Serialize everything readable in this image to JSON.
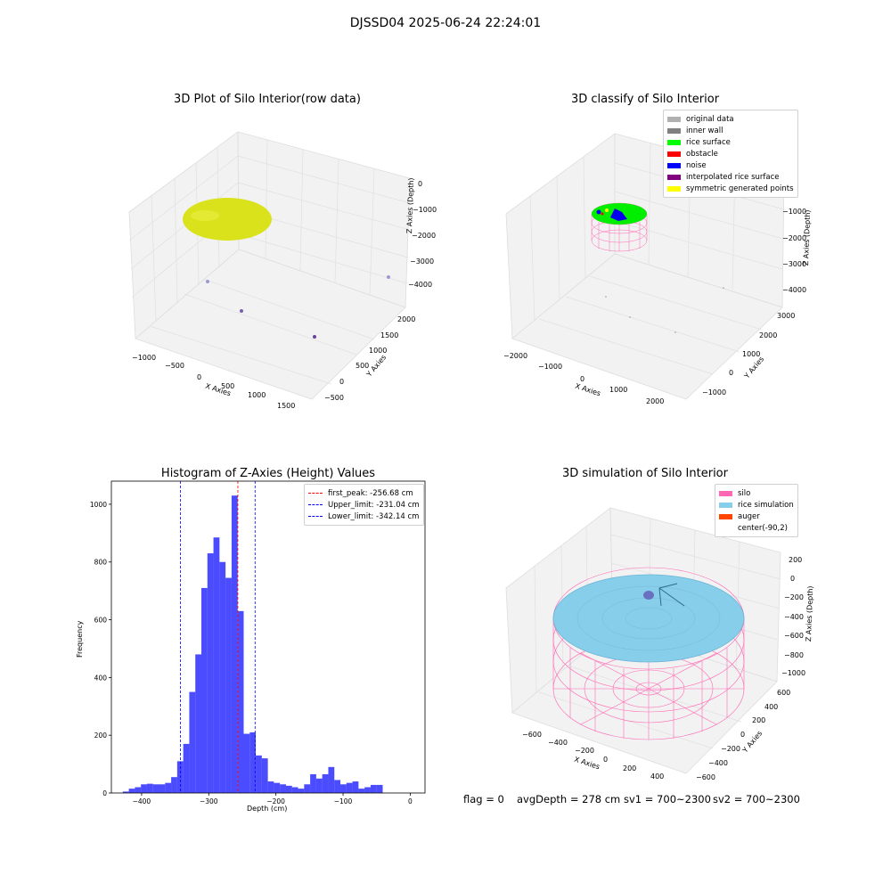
{
  "suptitle": "DJSSD04 2025-06-24 22:24:01",
  "panel1": {
    "title": "3D Plot of Silo Interior(row data)",
    "xlabel": "X Axies",
    "ylabel": "Y Axies",
    "zlabel": "Z Axies (Depth)",
    "xticks": [
      "−1000",
      "−500",
      "0",
      "500",
      "1000",
      "1500"
    ],
    "yticks": [
      "2000",
      "1500",
      "1000",
      "500",
      "0",
      "−500"
    ],
    "zticks": [
      "0",
      "−1000",
      "−2000",
      "−3000",
      "−4000"
    ],
    "surface_color": "#d9e21a"
  },
  "panel2": {
    "title": "3D classify of Silo Interior",
    "xlabel": "X Axies",
    "ylabel": "Y Axies",
    "zlabel": "Z Axies (Depth)",
    "xticks": [
      "−2000",
      "−1000",
      "0",
      "1000",
      "2000"
    ],
    "yticks": [
      "3000",
      "2000",
      "1000",
      "0",
      "−1000"
    ],
    "zticks": [
      "0",
      "−1000",
      "−2000",
      "−3000",
      "−4000"
    ],
    "legend": [
      {
        "label": "original data",
        "color": "#b0b0b0"
      },
      {
        "label": "inner wall",
        "color": "#808080"
      },
      {
        "label": "rice surface",
        "color": "#00ff00"
      },
      {
        "label": "obstacle",
        "color": "#ff0000"
      },
      {
        "label": "noise",
        "color": "#0000ff"
      },
      {
        "label": "interpolated rice surface",
        "color": "#800080"
      },
      {
        "label": "symmetric generated points",
        "color": "#ffff00"
      }
    ]
  },
  "panel4": {
    "title": "3D simulation of Silo Interior",
    "xlabel": "X Axies",
    "ylabel": "Y Axies",
    "zlabel": "Z Axies (Depth)",
    "xticks": [
      "−600",
      "−400",
      "−200",
      "0",
      "200",
      "400"
    ],
    "yticks": [
      "600",
      "400",
      "200",
      "0",
      "−200",
      "−400",
      "−600"
    ],
    "zticks": [
      "200",
      "0",
      "−200",
      "−400",
      "−600",
      "−800",
      "−1000"
    ],
    "legend": [
      {
        "label": "silo",
        "color": "#ff69b4"
      },
      {
        "label": "rice simulation",
        "color": "#87ceeb"
      },
      {
        "label": "auger",
        "color": "#ff4500"
      },
      {
        "label": "center(-90,2)",
        "color": ""
      }
    ]
  },
  "footer": {
    "flag": "flag = 0",
    "avg": "avgDepth = 278 cm",
    "sv1": "sv1 = 700~2300",
    "sv2": "sv2 = 700~2300"
  },
  "chart_data": [
    {
      "type": "histogram",
      "title": "Histogram of Z-Axies (Height) Values",
      "xlabel": "Depth (cm)",
      "ylabel": "Frequency",
      "xlim": [
        -445,
        22
      ],
      "ylim": [
        0,
        1080
      ],
      "xticks": [
        -400,
        -300,
        -200,
        -100,
        0
      ],
      "yticks": [
        0,
        200,
        400,
        600,
        800,
        1000
      ],
      "bar_color": "#0000ff",
      "bin_edges": [
        -428,
        -419,
        -410,
        -401,
        -392,
        -383,
        -374,
        -365,
        -356,
        -347,
        -338,
        -329,
        -320,
        -311,
        -302,
        -293,
        -284,
        -275,
        -266,
        -257,
        -248,
        -239,
        -230,
        -221,
        -212,
        -203,
        -194,
        -185,
        -176,
        -167,
        -158,
        -149,
        -140,
        -131,
        -122,
        -113,
        -104,
        -95,
        -86,
        -77,
        -68,
        -59,
        -50,
        -41
      ],
      "counts": [
        5,
        15,
        20,
        30,
        32,
        30,
        30,
        35,
        55,
        110,
        170,
        350,
        480,
        710,
        830,
        885,
        800,
        745,
        1030,
        630,
        205,
        210,
        130,
        120,
        40,
        35,
        30,
        25,
        20,
        15,
        30,
        65,
        50,
        65,
        90,
        45,
        30,
        35,
        40,
        15,
        20,
        28,
        28
      ],
      "lines": [
        {
          "label": "first_peak: -256.68 cm",
          "x": -256.68,
          "color": "#ff0000"
        },
        {
          "label": "Upper_limit: -231.04 cm",
          "x": -231.04,
          "color": "#0000ff"
        },
        {
          "label": "Lower_limit: -342.14 cm",
          "x": -342.14,
          "color": "#0000ff"
        }
      ]
    }
  ]
}
